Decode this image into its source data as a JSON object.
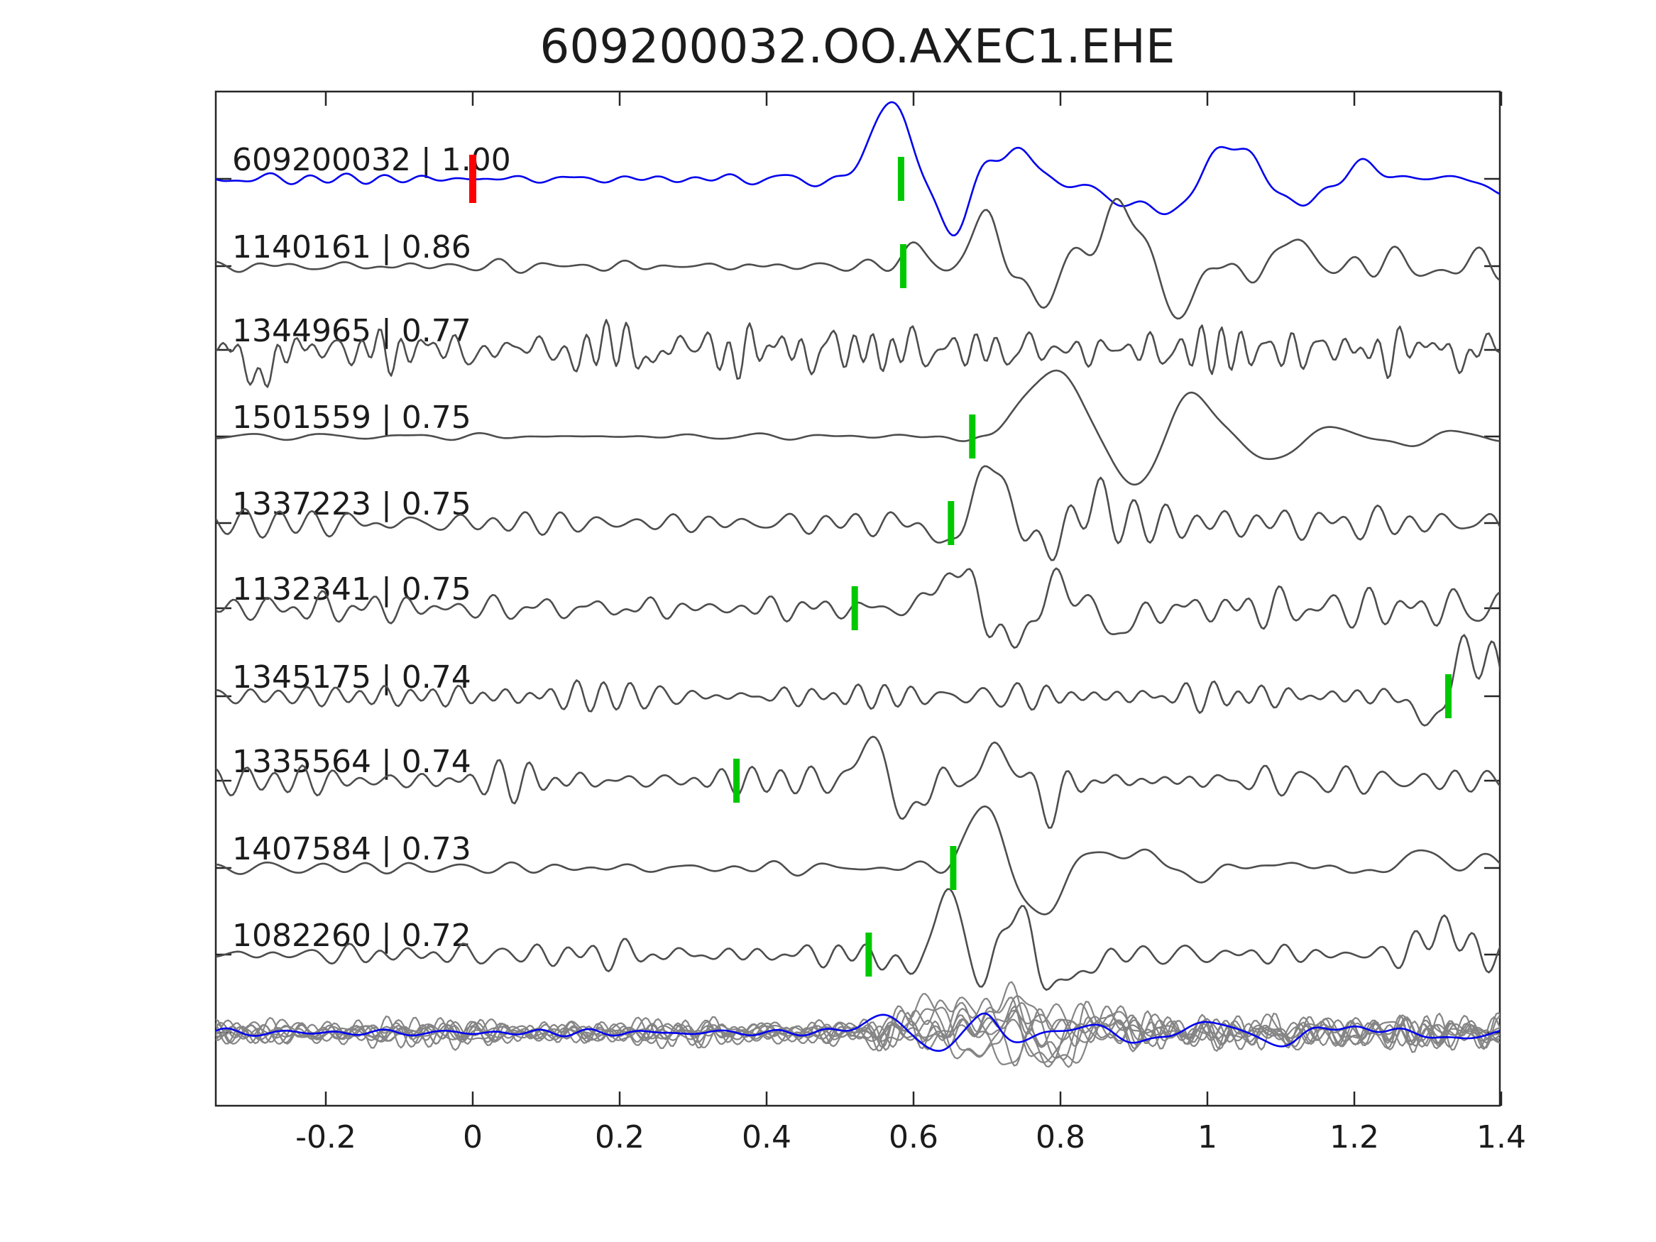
{
  "title": "609200032.OO.AXEC1.EHE",
  "colors": {
    "template_trace": "#0202ee",
    "detection_trace": "#4d4d4d",
    "overlay_trace": "#858585",
    "pick_marker": "#00c800",
    "template_pick_marker": "#ff0000",
    "axis": "#262626",
    "text": "#1b1b1b",
    "background": "#ffffff"
  },
  "axis": {
    "x_ticks": [
      "-0.2",
      "0",
      "0.2",
      "0.4",
      "0.6",
      "0.8",
      "1",
      "1.2",
      "1.4"
    ],
    "x_tick_values": [
      -0.2,
      0,
      0.2,
      0.4,
      0.6,
      0.8,
      1.0,
      1.2,
      1.4
    ],
    "xlim": [
      -0.35,
      1.4
    ]
  },
  "chart_data": {
    "type": "line",
    "title": "609200032.OO.AXEC1.EHE",
    "x_range": [
      -0.35,
      1.4
    ],
    "description": "Stacked normalized seismic waveforms: template event (blue, top) with red template-pick at t=0, ranked detections (dark gray) each labeled 'id | correlation' with green pick markers, and bottom overlay of all detections (light gray) with template in blue.",
    "traces": [
      {
        "id": "609200032",
        "correlation": 1.0,
        "label": "609200032 | 1.00",
        "role": "template",
        "pick_time": 0.583,
        "template_pick_time": 0.0,
        "wf": {
          "event": 0.52,
          "comps": [
            {
              "f0": 10,
              "f1": 22,
              "pre": 3.5,
              "post": 4.5
            },
            {
              "f0": 3.5,
              "f1": 7,
              "pre": 0,
              "post": 20
            }
          ],
          "bumps": [
            [
              80,
              0.567,
              0.035
            ],
            [
              -62,
              0.652,
              0.028
            ],
            [
              45,
              0.7,
              0.022
            ],
            [
              48,
              0.748,
              0.025
            ],
            [
              -50,
              0.855,
              0.05
            ]
          ]
        }
      },
      {
        "id": "1140161",
        "correlation": 0.86,
        "label": "1140161 | 0.86",
        "role": "detection",
        "pick_time": 0.586,
        "template_pick_time": null,
        "wf": {
          "event": 0.62,
          "comps": [
            {
              "f0": 10,
              "f1": 24,
              "pre": 4,
              "post": 10
            },
            {
              "f0": 5,
              "f1": 10,
              "pre": 0,
              "post": 7
            }
          ],
          "bumps": [
            [
              28,
              0.6,
              0.02
            ],
            [
              60,
              0.695,
              0.03
            ],
            [
              -45,
              0.77,
              0.035
            ],
            [
              75,
              0.875,
              0.045
            ],
            [
              -50,
              0.965,
              0.04
            ],
            [
              30,
              1.13,
              0.03
            ]
          ]
        }
      },
      {
        "id": "1344965",
        "correlation": 0.77,
        "label": "1344965 | 0.77",
        "role": "detection",
        "pick_time": null,
        "template_pick_time": null,
        "wf": {
          "event": 0.0,
          "comps": [
            {
              "f0": 18,
              "f1": 42,
              "pre": 16,
              "post": 16
            },
            {
              "f0": 7,
              "f1": 13,
              "pre": 5,
              "post": 5
            }
          ],
          "bumps": [
            [
              -70,
              -0.295,
              0.012
            ]
          ]
        }
      },
      {
        "id": "1501559",
        "correlation": 0.75,
        "label": "1501559 | 0.75",
        "role": "detection",
        "pick_time": 0.68,
        "template_pick_time": null,
        "wf": {
          "event": 0.62,
          "comps": [
            {
              "f0": 8,
              "f1": 18,
              "pre": 2,
              "post": 3
            },
            {
              "f0": 3,
              "f1": 6.5,
              "pre": 0,
              "post": 11
            }
          ],
          "bumps": [
            [
              85,
              0.79,
              0.055
            ],
            [
              -68,
              0.9,
              0.045
            ],
            [
              55,
              0.985,
              0.05
            ],
            [
              -28,
              1.09,
              0.05
            ],
            [
              12,
              0.69,
              0.02
            ]
          ]
        }
      },
      {
        "id": "1337223",
        "correlation": 0.75,
        "label": "1337223 | 0.75",
        "role": "detection",
        "pick_time": 0.651,
        "template_pick_time": null,
        "wf": {
          "event": 0.66,
          "comps": [
            {
              "f0": 12,
              "f1": 26,
              "pre": 8,
              "post": 12
            }
          ],
          "bumps": [
            [
              -38,
              0.648,
              0.022
            ],
            [
              85,
              0.703,
              0.028
            ],
            [
              -35,
              0.78,
              0.03
            ],
            [
              30,
              0.845,
              0.03
            ]
          ]
        }
      },
      {
        "id": "1132341",
        "correlation": 0.75,
        "label": "1132341 | 0.75",
        "role": "detection",
        "pick_time": 0.52,
        "template_pick_time": null,
        "wf": {
          "event": 0.62,
          "comps": [
            {
              "f0": 12,
              "f1": 30,
              "pre": 8,
              "post": 13
            }
          ],
          "bumps": [
            [
              58,
              0.655,
              0.03
            ],
            [
              -48,
              0.735,
              0.035
            ],
            [
              40,
              0.8,
              0.03
            ],
            [
              -30,
              0.88,
              0.035
            ]
          ]
        }
      },
      {
        "id": "1345175",
        "correlation": 0.74,
        "label": "1345175 | 0.74",
        "role": "detection",
        "pick_time": 1.328,
        "template_pick_time": null,
        "wf": {
          "event": 0.0,
          "comps": [
            {
              "f0": 16,
              "f1": 38,
              "pre": 12,
              "post": 12
            }
          ],
          "bumps": [
            [
              -45,
              1.3,
              0.02
            ],
            [
              65,
              1.355,
              0.025
            ],
            [
              40,
              1.395,
              0.02
            ]
          ]
        }
      },
      {
        "id": "1335564",
        "correlation": 0.74,
        "label": "1335564 | 0.74",
        "role": "detection",
        "pick_time": 0.359,
        "template_pick_time": null,
        "wf": {
          "event": 0.6,
          "comps": [
            {
              "f0": 14,
              "f1": 30,
              "pre": 10,
              "post": 11
            }
          ],
          "bumps": [
            [
              70,
              0.545,
              0.022
            ],
            [
              -55,
              0.588,
              0.025
            ],
            [
              45,
              0.72,
              0.03
            ],
            [
              -35,
              0.78,
              0.03
            ]
          ]
        }
      },
      {
        "id": "1407584",
        "correlation": 0.73,
        "label": "1407584 | 0.73",
        "role": "detection",
        "pick_time": 0.654,
        "template_pick_time": null,
        "wf": {
          "event": 0.63,
          "comps": [
            {
              "f0": 8,
              "f1": 20,
              "pre": 3.5,
              "post": 5
            },
            {
              "f0": 4,
              "f1": 9,
              "pre": 0,
              "post": 9
            }
          ],
          "bumps": [
            [
              90,
              0.7,
              0.03
            ],
            [
              -60,
              0.775,
              0.04
            ],
            [
              30,
              0.86,
              0.04
            ],
            [
              25,
              1.3,
              0.03
            ]
          ]
        }
      },
      {
        "id": "1082260",
        "correlation": 0.72,
        "label": "1082260 | 0.72",
        "role": "detection",
        "pick_time": 0.539,
        "template_pick_time": null,
        "wf": {
          "event": 0.6,
          "comps": [
            {
              "f0": 12,
              "f1": 28,
              "pre": 8,
              "post": 13
            }
          ],
          "bumps": [
            [
              -35,
              0.6,
              0.025
            ],
            [
              88,
              0.645,
              0.03
            ],
            [
              -55,
              0.695,
              0.025
            ],
            [
              70,
              0.735,
              0.03
            ],
            [
              -45,
              0.8,
              0.04
            ],
            [
              40,
              1.32,
              0.03
            ]
          ]
        }
      }
    ],
    "overlay": {
      "count": 9,
      "noise": {
        "f0": 10,
        "f1": 32,
        "pre": 8,
        "post": 10
      },
      "event": 0.58,
      "bump_time_range": [
        0.6,
        0.75
      ],
      "bump_amp_range": [
        34,
        60
      ],
      "blue": {
        "event": 0.52,
        "comps": [
          {
            "f0": 8,
            "f1": 20,
            "pre": 2.5,
            "post": 3
          },
          {
            "f0": 4,
            "f1": 8,
            "pre": 0,
            "post": 8
          }
        ],
        "bumps": [
          [
            30,
            0.567,
            0.03
          ],
          [
            -26,
            0.648,
            0.028
          ],
          [
            18,
            0.7,
            0.02
          ]
        ]
      }
    }
  }
}
